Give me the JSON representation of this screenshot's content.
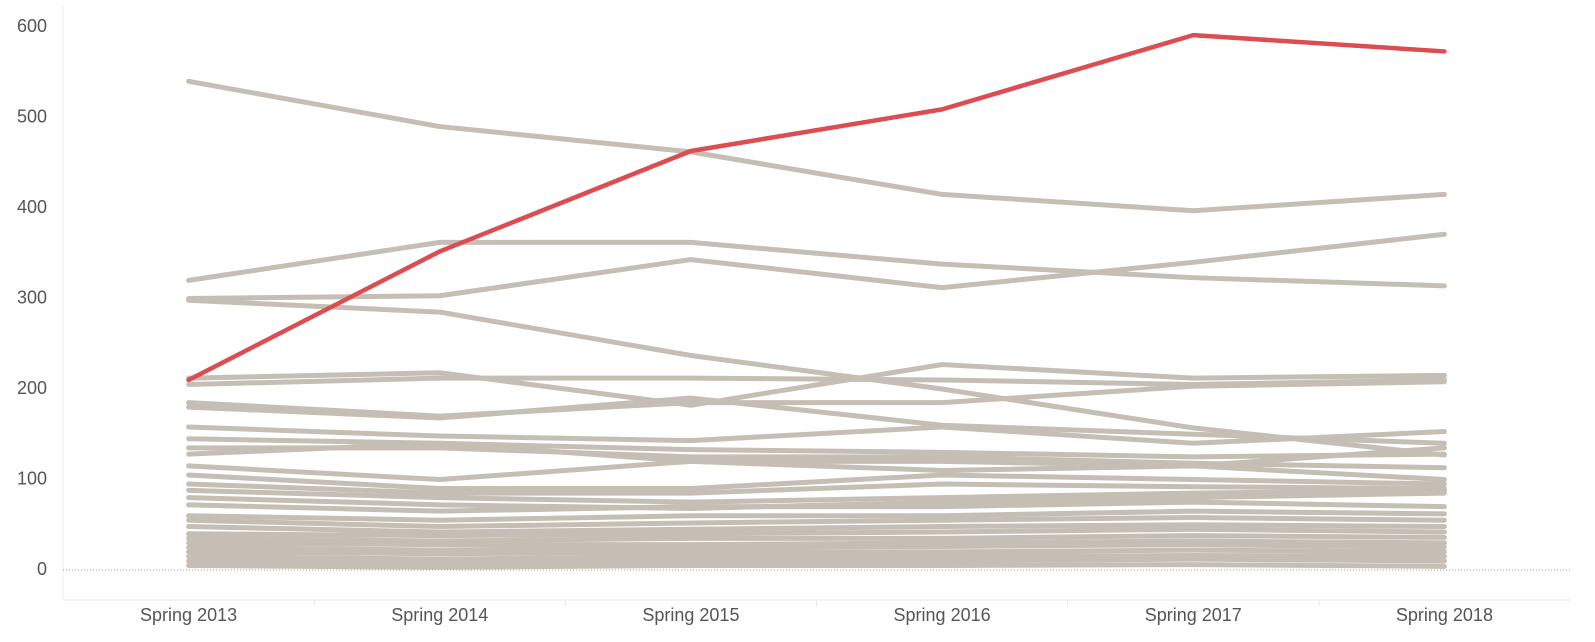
{
  "chart_data": {
    "type": "line",
    "categories": [
      "Spring 2013",
      "Spring 2014",
      "Spring 2015",
      "Spring 2016",
      "Spring 2017",
      "Spring 2018"
    ],
    "ylim": [
      0,
      600
    ],
    "yticks": [
      0,
      100,
      200,
      300,
      400,
      500,
      600
    ],
    "zero_line": true,
    "series": [
      {
        "color": "#c5beb4",
        "values": [
          540,
          490,
          462,
          415,
          397,
          415
        ]
      },
      {
        "color": "#c5beb4",
        "values": [
          320,
          362,
          362,
          338,
          323,
          314
        ]
      },
      {
        "color": "#c5beb4",
        "values": [
          300,
          303,
          343,
          312,
          340,
          371
        ]
      },
      {
        "color": "#c5beb4",
        "values": [
          298,
          285,
          237,
          200,
          157,
          127
        ]
      },
      {
        "color": "#c5beb4",
        "values": [
          212,
          218,
          182,
          227,
          212,
          215
        ]
      },
      {
        "color": "#c5beb4",
        "values": [
          205,
          212,
          212,
          210,
          205,
          210
        ]
      },
      {
        "color": "#c5beb4",
        "values": [
          185,
          170,
          185,
          185,
          203,
          208
        ]
      },
      {
        "color": "#c5beb4",
        "values": [
          180,
          168,
          190,
          160,
          150,
          140
        ]
      },
      {
        "color": "#c5beb4",
        "values": [
          158,
          148,
          143,
          158,
          140,
          153
        ]
      },
      {
        "color": "#c5beb4",
        "values": [
          145,
          140,
          133,
          130,
          125,
          128
        ]
      },
      {
        "color": "#c5beb4",
        "values": [
          135,
          135,
          125,
          125,
          118,
          113
        ]
      },
      {
        "color": "#c5beb4",
        "values": [
          128,
          140,
          120,
          110,
          115,
          135
        ]
      },
      {
        "color": "#c5beb4",
        "values": [
          115,
          100,
          120,
          120,
          115,
          100
        ]
      },
      {
        "color": "#c5beb4",
        "values": [
          105,
          90,
          90,
          105,
          100,
          95
        ]
      },
      {
        "color": "#c5beb4",
        "values": [
          95,
          85,
          85,
          95,
          92,
          90
        ]
      },
      {
        "color": "#c5beb4",
        "values": [
          88,
          80,
          75,
          80,
          85,
          88
        ]
      },
      {
        "color": "#c5beb4",
        "values": [
          80,
          72,
          68,
          75,
          80,
          85
        ]
      },
      {
        "color": "#c5beb4",
        "values": [
          72,
          65,
          70,
          70,
          75,
          70
        ]
      },
      {
        "color": "#c5beb4",
        "values": [
          60,
          55,
          60,
          60,
          65,
          62
        ]
      },
      {
        "color": "#c5beb4",
        "values": [
          55,
          48,
          52,
          55,
          58,
          55
        ]
      },
      {
        "color": "#c5beb4",
        "values": [
          48,
          42,
          45,
          48,
          50,
          48
        ]
      },
      {
        "color": "#c5beb4",
        "values": [
          40,
          38,
          40,
          42,
          45,
          42
        ]
      },
      {
        "color": "#c5beb4",
        "values": [
          35,
          32,
          35,
          35,
          38,
          36
        ]
      },
      {
        "color": "#c5beb4",
        "values": [
          30,
          28,
          28,
          30,
          32,
          30
        ]
      },
      {
        "color": "#c5beb4",
        "values": [
          25,
          22,
          25,
          26,
          28,
          25
        ]
      },
      {
        "color": "#c5beb4",
        "values": [
          20,
          18,
          20,
          20,
          22,
          20
        ]
      },
      {
        "color": "#c5beb4",
        "values": [
          15,
          12,
          15,
          15,
          16,
          15
        ]
      },
      {
        "color": "#c5beb4",
        "values": [
          10,
          8,
          10,
          10,
          12,
          10
        ]
      },
      {
        "color": "#c5beb4",
        "values": [
          5,
          3,
          5,
          5,
          6,
          4
        ]
      },
      {
        "color": "#dc4c50",
        "values": [
          210,
          352,
          463,
          509,
          591,
          573
        ]
      }
    ]
  }
}
